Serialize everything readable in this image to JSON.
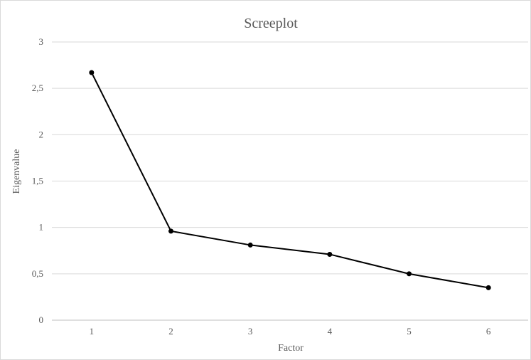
{
  "chart_data": {
    "type": "line",
    "title": "Screeplot",
    "xlabel": "Factor",
    "ylabel": "Eigenvalue",
    "categories": [
      "1",
      "2",
      "3",
      "4",
      "5",
      "6"
    ],
    "y_tick_labels": [
      "0",
      "0,5",
      "1",
      "1,5",
      "2",
      "2,5",
      "3"
    ],
    "y_ticks": [
      0,
      0.5,
      1,
      1.5,
      2,
      2.5,
      3
    ],
    "ylim": [
      0,
      3
    ],
    "grid": true,
    "legend": "none",
    "series": [
      {
        "values": [
          2.67,
          0.96,
          0.81,
          0.71,
          0.5,
          0.35
        ]
      }
    ],
    "colors": {
      "line": "#000000",
      "marker": "#000000",
      "grid": "#d9d9d9",
      "text": "#595959"
    }
  }
}
